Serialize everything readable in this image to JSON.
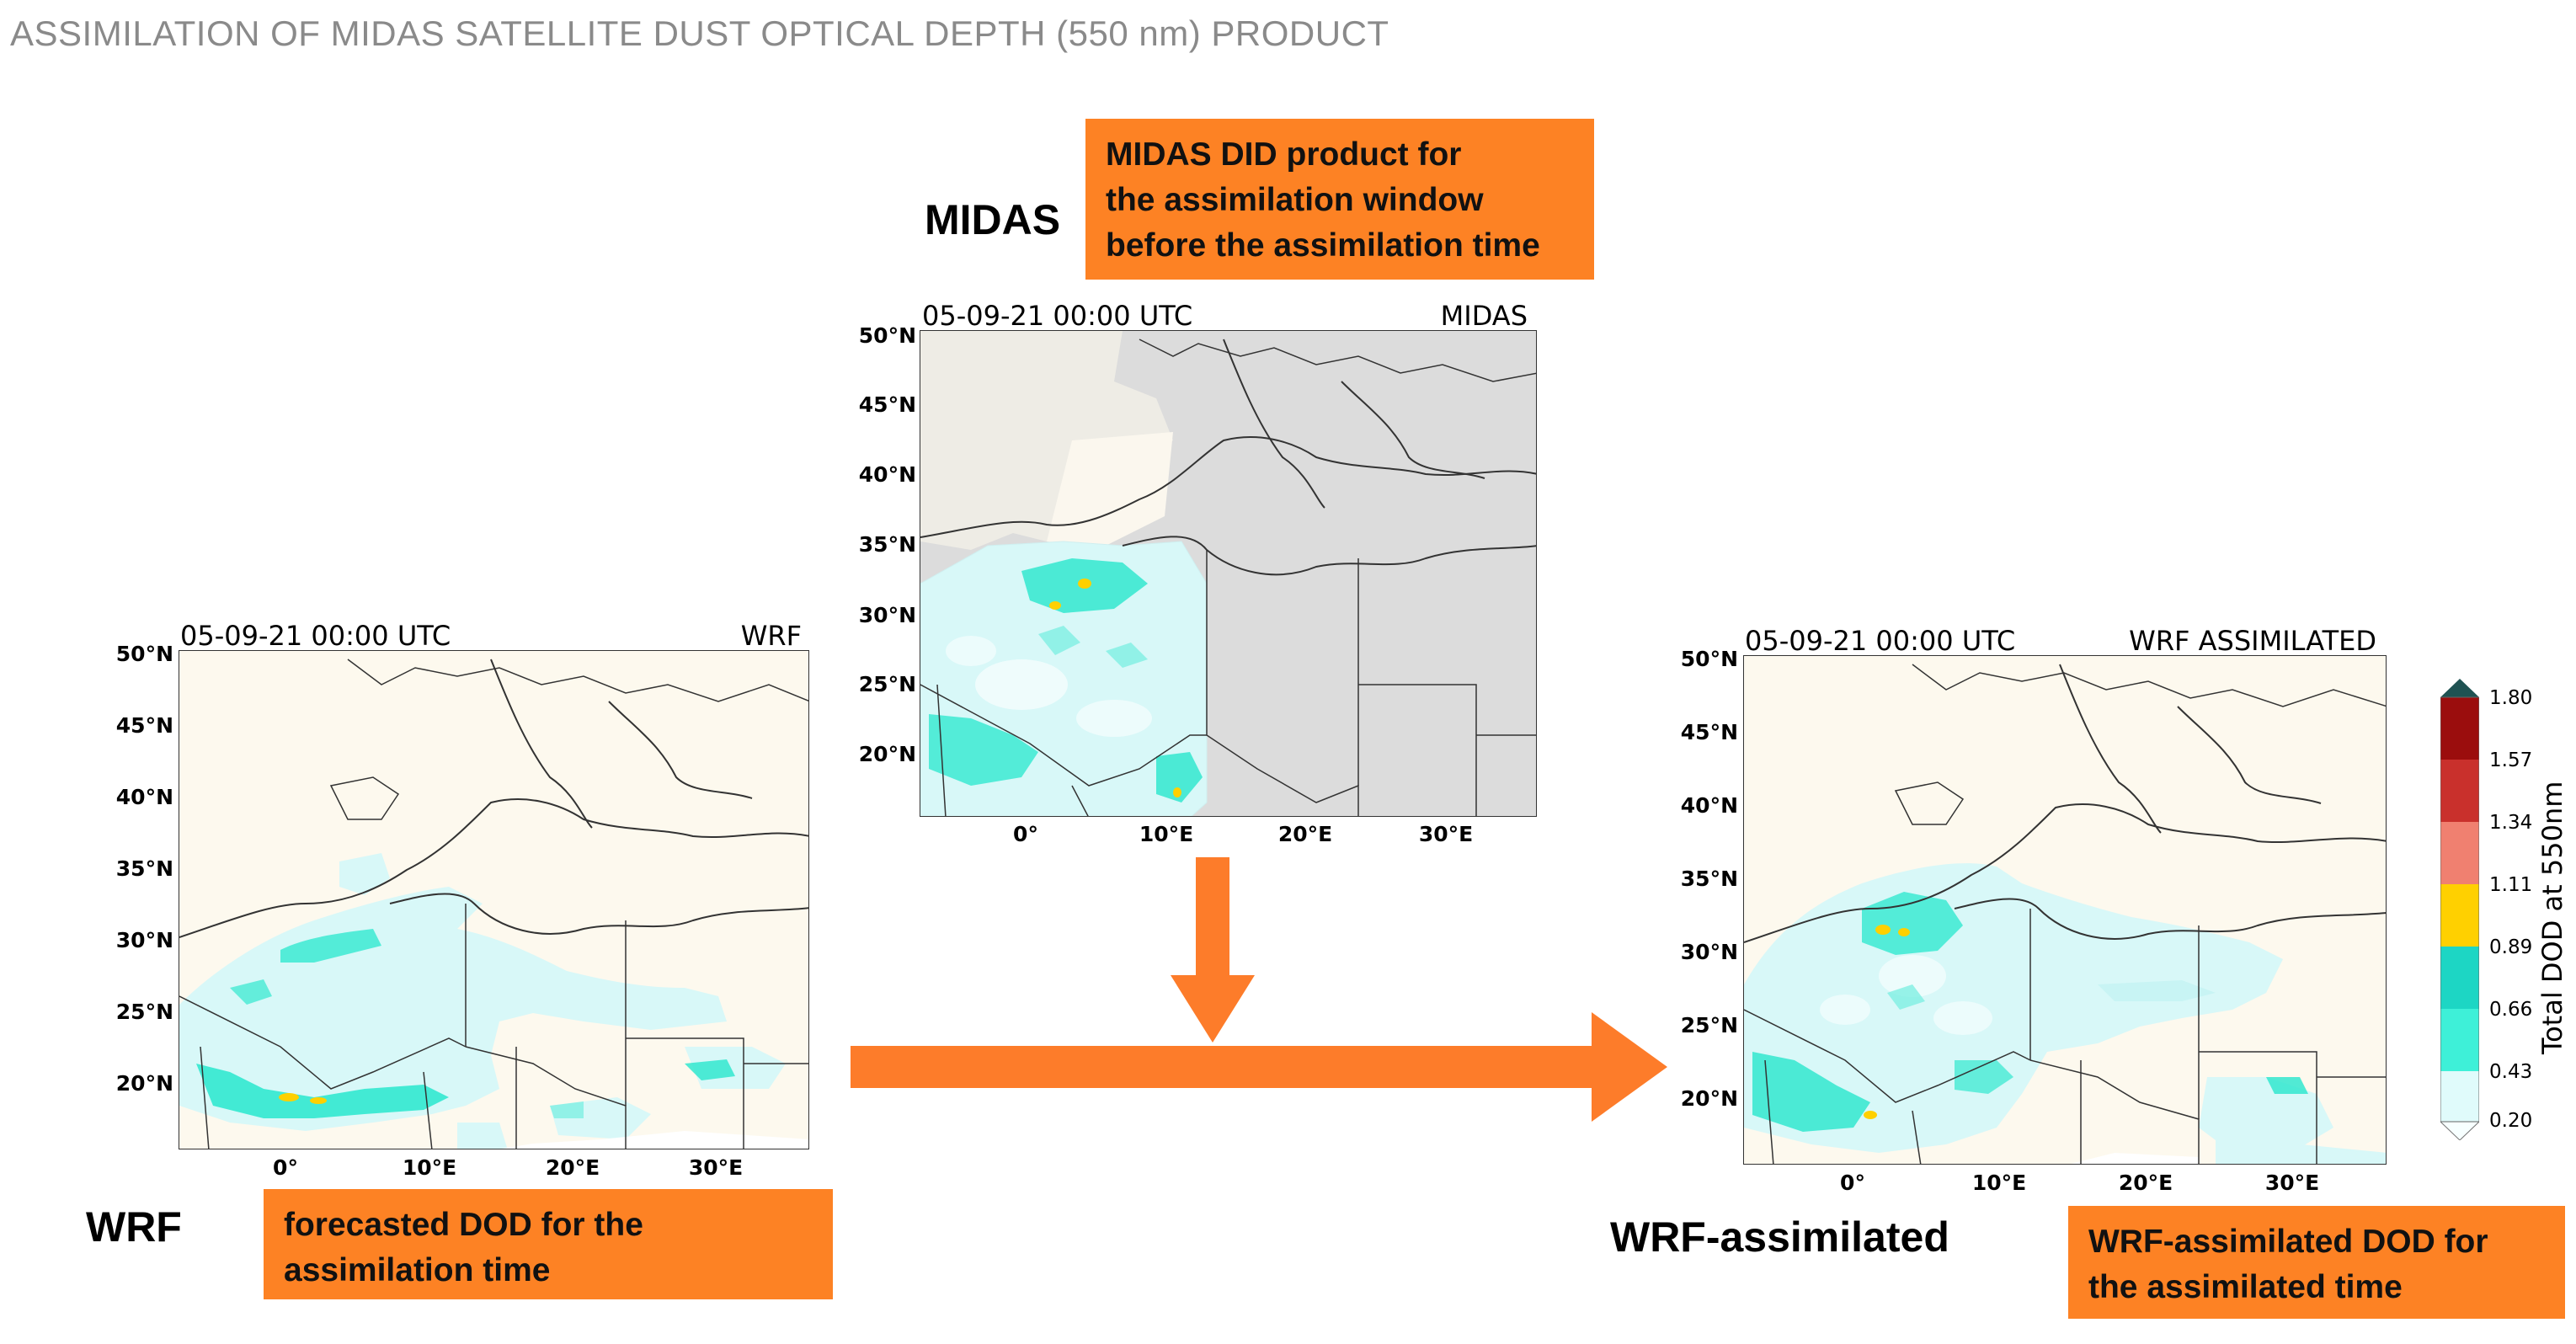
{
  "slide": {
    "title": "ASSIMILATION OF MIDAS SATELLITE DUST OPTICAL DEPTH (550 nm) PRODUCT"
  },
  "midas": {
    "label": "MIDAS",
    "callout_line1": "MIDAS DID product for",
    "callout_line2": "the assimilation window",
    "callout_line3": "before the assimilation time",
    "time": "05-09-21 00:00 UTC",
    "name": "MIDAS"
  },
  "wrf": {
    "label": "WRF",
    "callout_line1": "forecasted DOD for the",
    "callout_line2": "assimilation time",
    "time": "05-09-21 00:00 UTC",
    "name": "WRF"
  },
  "wrf_assim": {
    "label": "WRF-assimilated",
    "callout_line1": "WRF-assimilated DOD for",
    "callout_line2": "the assimilated time",
    "time": "05-09-21 00:00 UTC",
    "name": "WRF ASSIMILATED"
  },
  "axes": {
    "lat_ticks": [
      "50°N",
      "45°N",
      "40°N",
      "35°N",
      "30°N",
      "25°N",
      "20°N"
    ],
    "lon_ticks": [
      "0°",
      "10°E",
      "20°E",
      "30°E"
    ]
  },
  "colorbar": {
    "title": "Total DOD at 550nm",
    "ticks": [
      "1.80",
      "1.57",
      "1.34",
      "1.11",
      "0.89",
      "0.66",
      "0.43",
      "0.20"
    ],
    "colors": [
      "#9b0d0d",
      "#c9302c",
      "#f08070",
      "#ffd000",
      "#1dd6c4",
      "#3ef0d8",
      "#e0fbfb"
    ]
  },
  "colors": {
    "callout": "#fd8224",
    "arrow": "#fd7c2a",
    "land": "#fdf9ee",
    "nodata": "#dcdcdc",
    "dust_low": "#d8f8f8",
    "dust_mid": "#32e8cf",
    "dust_high": "#ffd000"
  }
}
